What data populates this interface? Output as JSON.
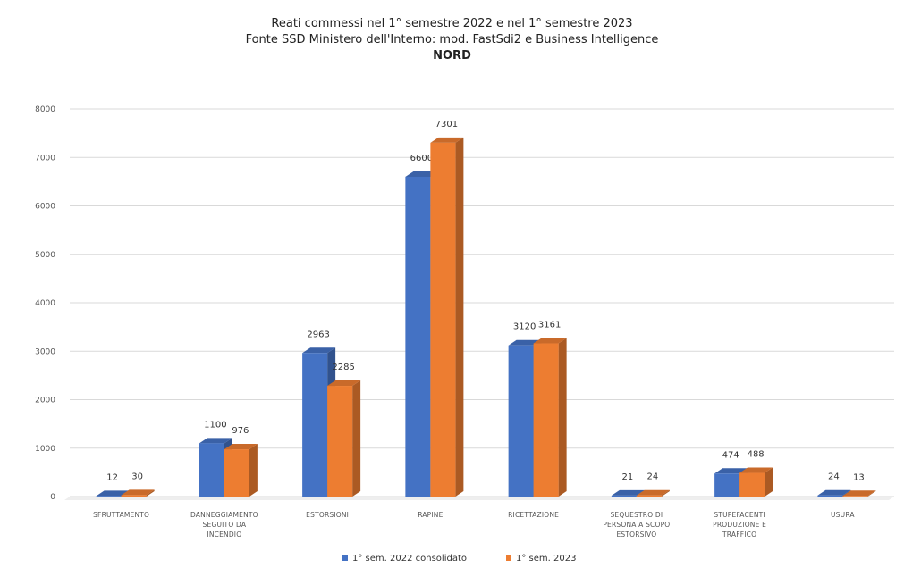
{
  "chart_data": {
    "type": "bar",
    "title_lines": [
      "Reati commessi nel 1° semestre 2022 e nel 1° semestre 2023",
      "Fonte SSD Ministero dell'Interno: mod. FastSdi2 e Business Intelligence",
      "NORD"
    ],
    "categories": [
      [
        "SFRUTTAMENTO"
      ],
      [
        "DANNEGGIAMENTO",
        "SEGUITO DA",
        "INCENDIO"
      ],
      [
        "ESTORSIONI"
      ],
      [
        "RAPINE"
      ],
      [
        "RICETTAZIONE"
      ],
      [
        "SEQUESTRO DI",
        "PERSONA A SCOPO",
        "ESTORSIVO"
      ],
      [
        "STUPEFACENTI",
        "PRODUZIONE E",
        "TRAFFICO"
      ],
      [
        "USURA"
      ]
    ],
    "series": [
      {
        "name": "1° sem. 2022 consolidato",
        "color": "#4472C4",
        "values": [
          12,
          1100,
          2963,
          6600,
          3120,
          21,
          474,
          24
        ]
      },
      {
        "name": "1° sem. 2023",
        "color": "#ED7D31",
        "values": [
          30,
          976,
          2285,
          7301,
          3161,
          24,
          488,
          13
        ]
      }
    ],
    "data_labels": [
      [
        "12",
        "1100",
        "2963",
        "6600",
        "3120",
        "21",
        "474",
        "24"
      ],
      [
        "30",
        "976",
        "2285",
        "7301",
        "3161",
        "24",
        "488",
        "13"
      ]
    ],
    "ylim": [
      0,
      8000
    ],
    "yticks": [
      "0",
      "1000",
      "2000",
      "3000",
      "4000",
      "5000",
      "6000",
      "7000",
      "8000"
    ],
    "grid": true,
    "legend_position": "bottom"
  }
}
